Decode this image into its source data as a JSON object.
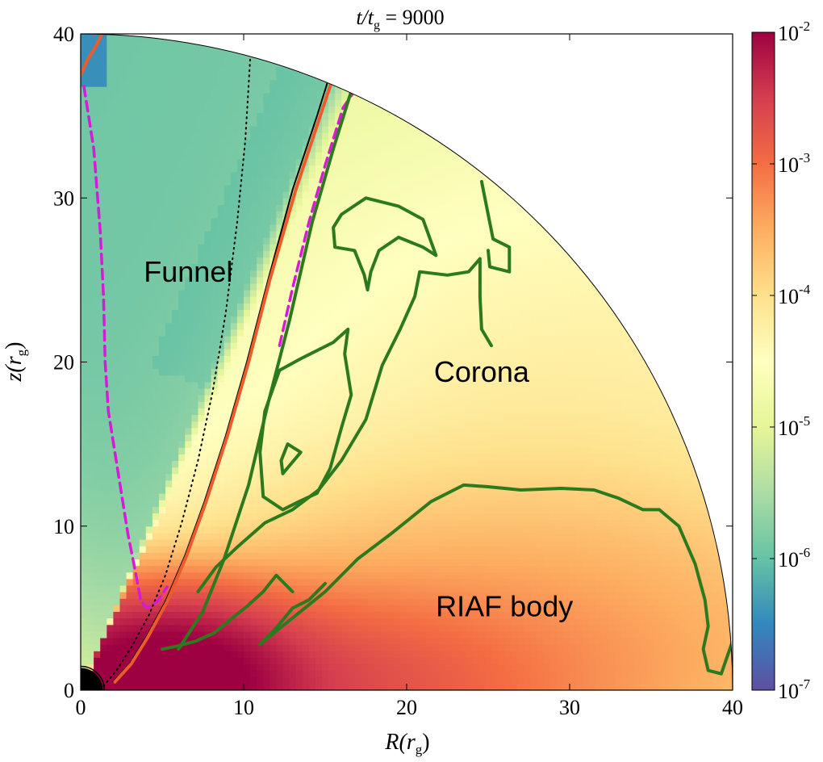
{
  "chart_data": {
    "type": "heatmap",
    "title": {
      "main": "t/t",
      "sub": "g",
      "tail": " = 9000"
    },
    "xlabel": {
      "main": "R(r",
      "sub": "g",
      "tail": ")"
    },
    "ylabel": {
      "main": "z(r",
      "sub": "g",
      "tail": ")"
    },
    "xlim": [
      0,
      40
    ],
    "ylim": [
      0,
      40
    ],
    "xticks": [
      0,
      10,
      20,
      30,
      40
    ],
    "yticks": [
      0,
      10,
      20,
      30,
      40
    ],
    "colorbar": {
      "scale": "log",
      "ticks": [
        {
          "base": "10",
          "exp": "-7",
          "value": 1e-07
        },
        {
          "base": "10",
          "exp": "-6",
          "value": 1e-06
        },
        {
          "base": "10",
          "exp": "-5",
          "value": 1e-05
        },
        {
          "base": "10",
          "exp": "-4",
          "value": 0.0001
        },
        {
          "base": "10",
          "exp": "-3",
          "value": 0.001
        },
        {
          "base": "10",
          "exp": "-2",
          "value": 0.01
        }
      ],
      "colormap": [
        "#5e4fa2",
        "#3288bd",
        "#66c2a5",
        "#abdda4",
        "#e6f598",
        "#ffffbf",
        "#fee08b",
        "#fdae61",
        "#f46d43",
        "#d53e4f",
        "#9e0142"
      ]
    },
    "annotations": [
      {
        "text": "Funnel",
        "x": 6.6,
        "y": 24.9
      },
      {
        "text": "Corona",
        "x": 24.6,
        "y": 18.8
      },
      {
        "text": "RIAF body",
        "x": 26.0,
        "y": 4.5
      }
    ],
    "contours": [
      {
        "color": "#000000",
        "style": "dotted",
        "points": [
          [
            1.2,
            0
          ],
          [
            2.2,
            1.2
          ],
          [
            3.1,
            2.6
          ],
          [
            4.2,
            4.6
          ],
          [
            5.2,
            7.0
          ],
          [
            6.2,
            10.2
          ],
          [
            7.2,
            14.0
          ],
          [
            8.1,
            18.2
          ],
          [
            8.9,
            23.0
          ],
          [
            9.6,
            28.5
          ],
          [
            10.1,
            33.5
          ],
          [
            10.4,
            38.5
          ]
        ]
      },
      {
        "color": "#000000",
        "style": "solid",
        "points": [
          [
            2.0,
            0.5
          ],
          [
            3.0,
            1.6
          ],
          [
            4.0,
            3.2
          ],
          [
            5.2,
            5.4
          ],
          [
            6.4,
            8.2
          ],
          [
            7.6,
            11.5
          ],
          [
            8.9,
            15.5
          ],
          [
            10.2,
            20.0
          ],
          [
            11.5,
            25.0
          ],
          [
            13.0,
            30.5
          ],
          [
            14.5,
            35.0
          ],
          [
            15.6,
            38.5
          ]
        ]
      },
      {
        "color": "#ee5a2a",
        "style": "solid",
        "points": [
          [
            2.1,
            0.5
          ],
          [
            3.1,
            1.6
          ],
          [
            4.1,
            3.2
          ],
          [
            5.3,
            5.4
          ],
          [
            6.5,
            8.2
          ],
          [
            7.7,
            11.5
          ],
          [
            9.0,
            15.5
          ],
          [
            10.3,
            20.0
          ],
          [
            11.6,
            25.0
          ],
          [
            13.2,
            30.5
          ],
          [
            14.7,
            35.0
          ],
          [
            15.8,
            38.3
          ]
        ]
      },
      {
        "color": "#ee5a2a",
        "style": "solid",
        "points": [
          [
            0.0,
            37.5
          ],
          [
            0.4,
            38.4
          ],
          [
            0.9,
            39.2
          ],
          [
            1.3,
            40.0
          ]
        ]
      },
      {
        "color": "#d81ad8",
        "style": "dashed",
        "points": [
          [
            0.2,
            36.8
          ],
          [
            0.8,
            33.0
          ],
          [
            1.2,
            28.0
          ],
          [
            1.4,
            24.0
          ],
          [
            1.5,
            20.0
          ],
          [
            1.7,
            17.0
          ],
          [
            2.1,
            14.5
          ],
          [
            2.5,
            12.0
          ],
          [
            2.9,
            9.5
          ],
          [
            3.3,
            7.5
          ],
          [
            3.7,
            5.4
          ],
          [
            4.1,
            5.0
          ],
          [
            4.7,
            5.4
          ],
          [
            5.3,
            6.3
          ]
        ]
      },
      {
        "color": "#d81ad8",
        "style": "dashed",
        "points": [
          [
            12.2,
            21.0
          ],
          [
            13.0,
            24.5
          ],
          [
            14.0,
            28.5
          ],
          [
            15.0,
            32.0
          ],
          [
            16.1,
            35.5
          ],
          [
            17.0,
            36.8
          ]
        ]
      },
      {
        "color": "#2d7a1e",
        "style": "solid",
        "points": [
          [
            6.0,
            2.5
          ],
          [
            7.5,
            4.8
          ],
          [
            8.8,
            8.0
          ],
          [
            10.3,
            12.5
          ],
          [
            11.5,
            17.5
          ],
          [
            12.8,
            22.5
          ],
          [
            14.2,
            28.5
          ],
          [
            15.5,
            33.0
          ],
          [
            16.6,
            36.5
          ]
        ]
      },
      {
        "color": "#2d7a1e",
        "style": "solid",
        "points": [
          [
            11.2,
            11.8
          ],
          [
            11.0,
            14.5
          ],
          [
            11.3,
            17.0
          ],
          [
            12.2,
            19.5
          ],
          [
            13.5,
            20.2
          ],
          [
            15.5,
            21.2
          ],
          [
            16.4,
            22.0
          ],
          [
            16.2,
            20.5
          ],
          [
            16.6,
            18.0
          ],
          [
            16.0,
            16.0
          ],
          [
            15.3,
            13.5
          ],
          [
            14.5,
            12.0
          ],
          [
            13.4,
            11.5
          ],
          [
            12.4,
            11.0
          ],
          [
            11.2,
            11.8
          ]
        ]
      },
      {
        "color": "#2d7a1e",
        "style": "solid",
        "points": [
          [
            12.4,
            13.2
          ],
          [
            13.5,
            14.5
          ],
          [
            12.7,
            15.0
          ],
          [
            12.3,
            14.0
          ],
          [
            12.4,
            13.2
          ]
        ]
      },
      {
        "color": "#2d7a1e",
        "style": "solid",
        "points": [
          [
            7.2,
            6.0
          ],
          [
            8.3,
            7.5
          ],
          [
            9.7,
            8.8
          ],
          [
            11.3,
            10.2
          ],
          [
            13.0,
            11.0
          ],
          [
            14.6,
            12.2
          ],
          [
            16.0,
            14.0
          ],
          [
            17.5,
            16.5
          ],
          [
            18.5,
            19.8
          ],
          [
            19.6,
            22.0
          ],
          [
            20.5,
            24.0
          ],
          [
            20.8,
            25.5
          ],
          [
            22.5,
            25.3
          ],
          [
            23.8,
            25.5
          ],
          [
            24.5,
            26.3
          ],
          [
            24.5,
            24.0
          ],
          [
            24.6,
            22.0
          ],
          [
            25.2,
            21.0
          ]
        ]
      },
      {
        "color": "#2d7a1e",
        "style": "solid",
        "points": [
          [
            16.0,
            29.0
          ],
          [
            17.5,
            30.0
          ],
          [
            19.5,
            29.5
          ],
          [
            21.0,
            28.7
          ],
          [
            21.8,
            26.5
          ],
          [
            21.0,
            27.0
          ],
          [
            19.5,
            27.6
          ],
          [
            18.3,
            26.8
          ],
          [
            17.8,
            25.5
          ],
          [
            17.6,
            24.4
          ],
          [
            17.4,
            25.3
          ],
          [
            16.8,
            26.8
          ],
          [
            15.6,
            27.0
          ],
          [
            15.5,
            28.2
          ],
          [
            16.0,
            29.0
          ]
        ]
      },
      {
        "color": "#2d7a1e",
        "style": "solid",
        "points": [
          [
            24.6,
            31.0
          ],
          [
            25.0,
            29.0
          ],
          [
            25.3,
            27.5
          ],
          [
            26.3,
            27.0
          ],
          [
            26.3,
            25.5
          ],
          [
            25.1,
            25.8
          ],
          [
            25.0,
            26.8
          ]
        ]
      },
      {
        "color": "#2d7a1e",
        "style": "solid",
        "points": [
          [
            5.0,
            2.5
          ],
          [
            6.0,
            2.7
          ],
          [
            7.1,
            3.0
          ],
          [
            8.2,
            3.5
          ],
          [
            9.3,
            4.4
          ],
          [
            10.2,
            5.1
          ],
          [
            11.2,
            6.0
          ],
          [
            12.0,
            7.0
          ],
          [
            13.0,
            6.0
          ]
        ]
      },
      {
        "color": "#2d7a1e",
        "style": "solid",
        "points": [
          [
            11.0,
            2.8
          ],
          [
            12.0,
            3.8
          ],
          [
            13.0,
            5.0
          ],
          [
            14.0,
            5.5
          ],
          [
            15.0,
            6.5
          ]
        ]
      },
      {
        "color": "#2d7a1e",
        "style": "solid",
        "points": [
          [
            11.0,
            2.8
          ],
          [
            13.0,
            4.4
          ],
          [
            15.0,
            6.0
          ],
          [
            17.0,
            8.0
          ],
          [
            19.0,
            9.5
          ],
          [
            21.5,
            11.5
          ],
          [
            23.5,
            12.5
          ],
          [
            25.0,
            12.4
          ],
          [
            27.0,
            12.2
          ],
          [
            29.5,
            12.3
          ],
          [
            31.5,
            12.2
          ],
          [
            33.0,
            11.7
          ],
          [
            34.5,
            11.0
          ],
          [
            35.5,
            11.0
          ],
          [
            36.7,
            10.0
          ],
          [
            37.7,
            7.7
          ],
          [
            38.3,
            5.5
          ],
          [
            38.5,
            3.9
          ],
          [
            38.2,
            2.5
          ],
          [
            38.5,
            1.2
          ],
          [
            39.3,
            1.0
          ],
          [
            40.0,
            3.0
          ]
        ]
      }
    ],
    "field_model": [
      {
        "amp": 0.017,
        "cx": 5.0,
        "cy": 0.5,
        "sx": 6.0,
        "sy": 3.5
      },
      {
        "amp": 0.0023,
        "cx": 12.0,
        "cy": 0.0,
        "sx": 12.0,
        "sy": 4.5
      },
      {
        "amp": 0.0004,
        "cx": 26.0,
        "cy": 2.0,
        "sx": 18.0,
        "sy": 8.0
      },
      {
        "amp": 5e-05,
        "cx": 30.0,
        "cy": 12.0,
        "sx": 20.0,
        "sy": 18.0
      }
    ],
    "field_background": 1.5e-05,
    "funnel_value": 1.2e-06,
    "funnel_edge_angle_deg": 66.5
  }
}
